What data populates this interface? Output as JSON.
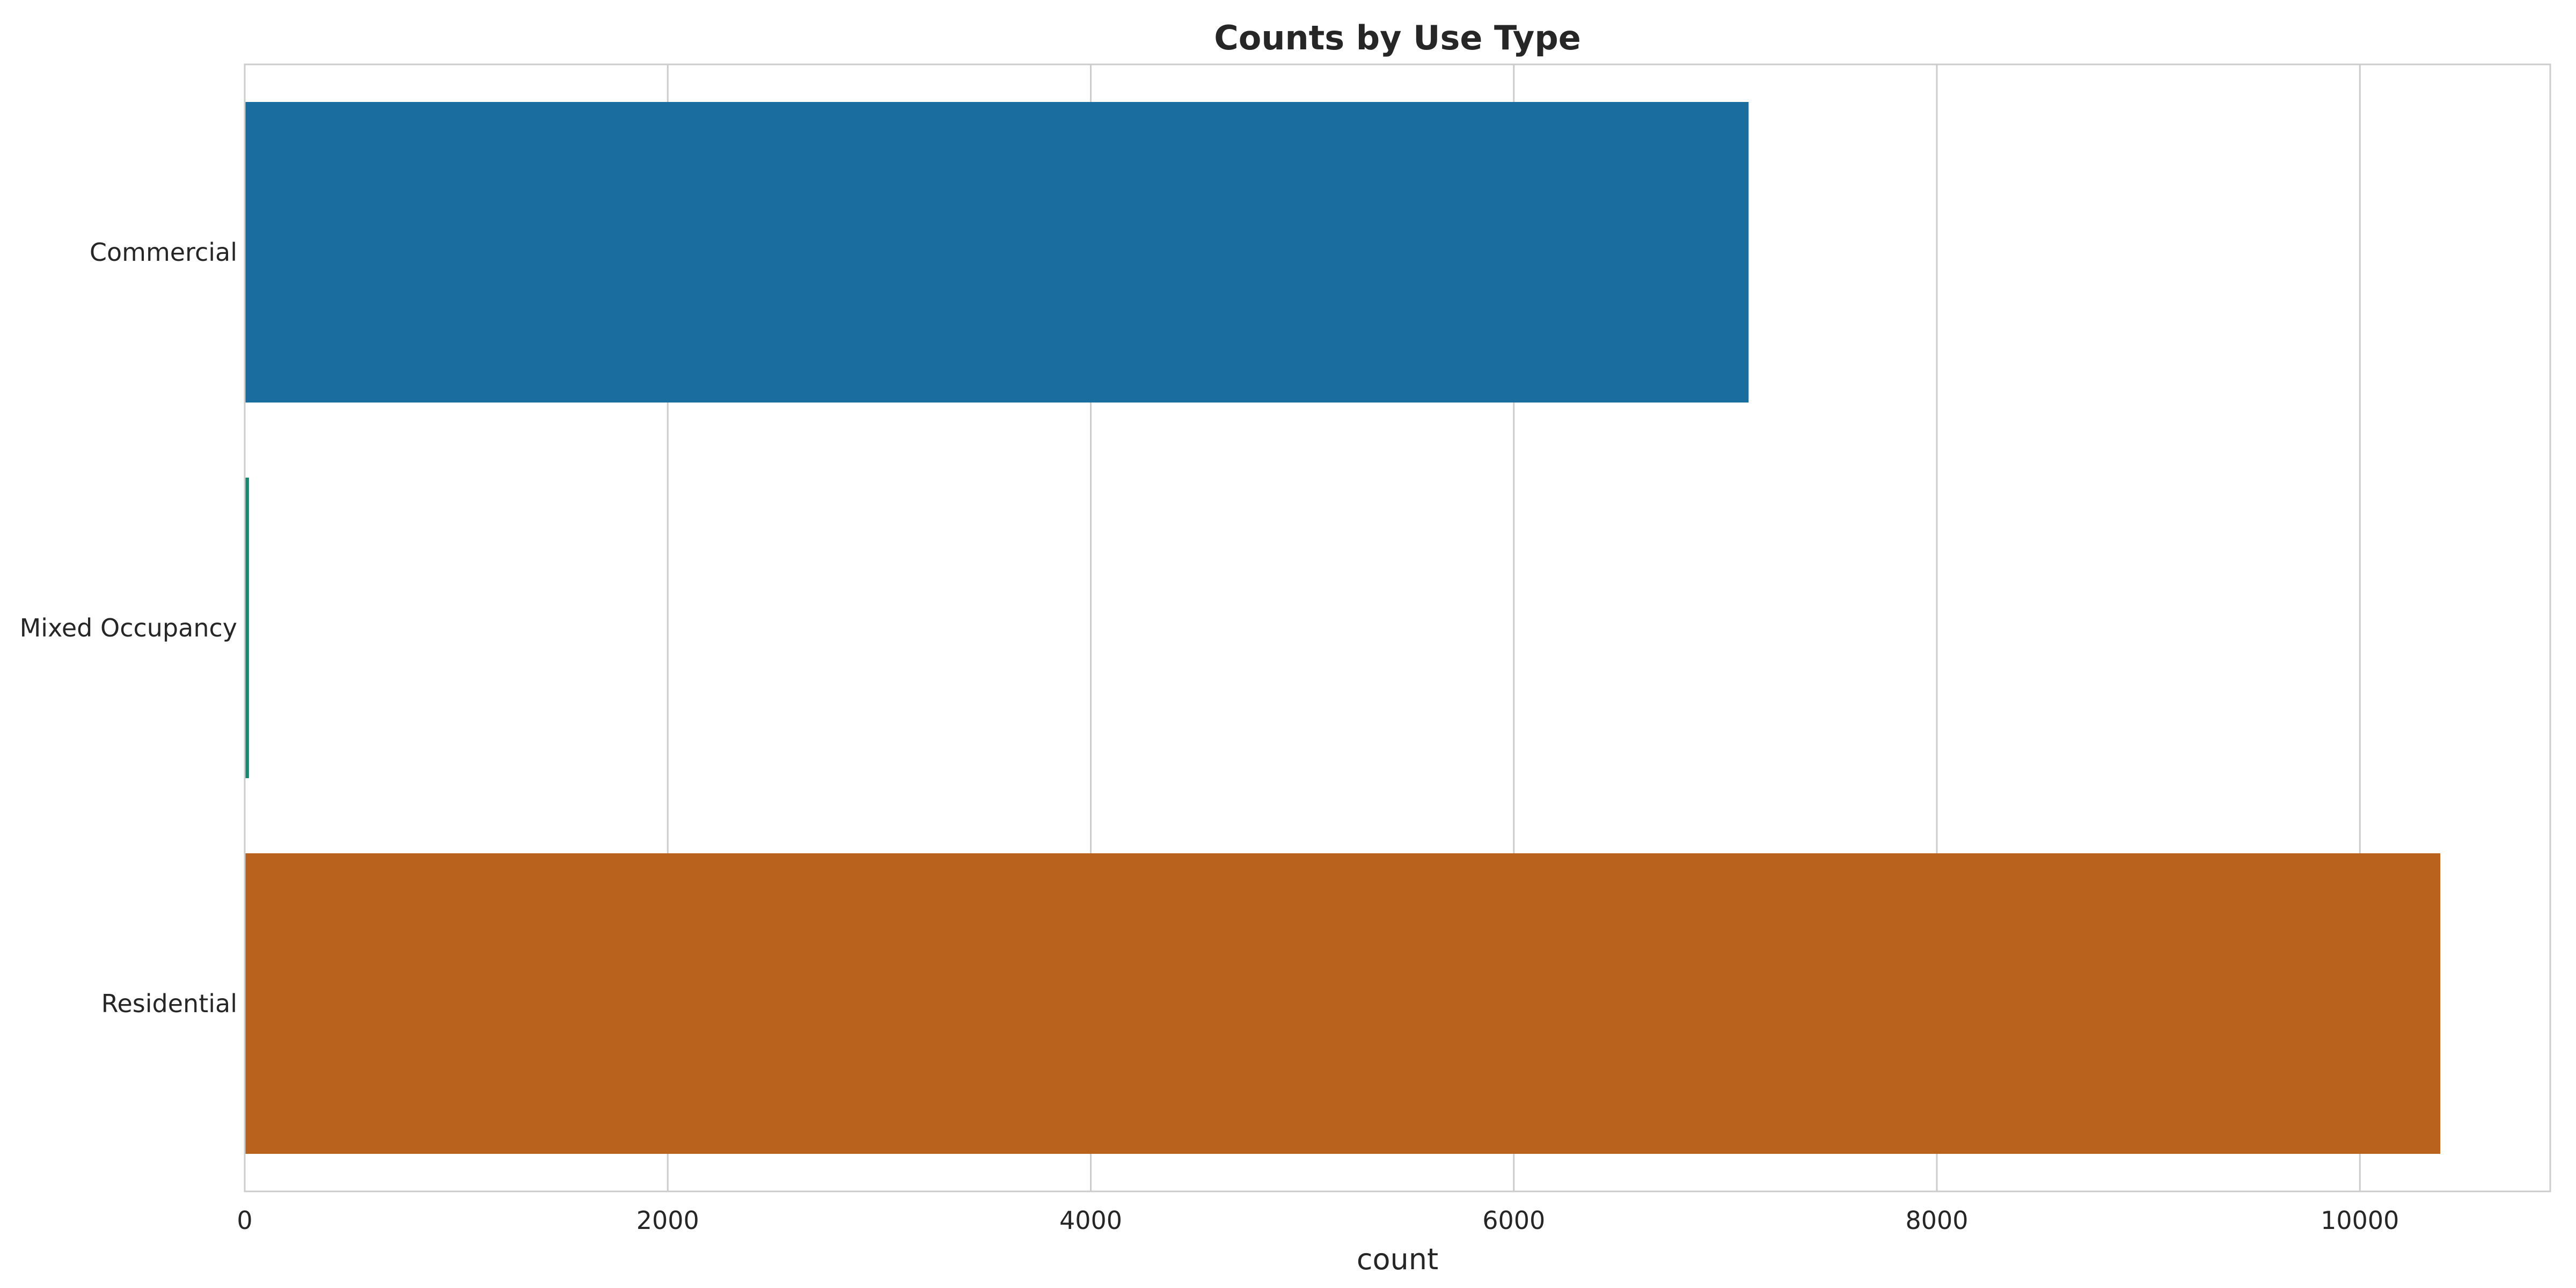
{
  "chart_data": {
    "type": "bar",
    "orientation": "horizontal",
    "title": "Counts by Use Type",
    "xlabel": "count",
    "ylabel": "",
    "categories": [
      "Commercial",
      "Mixed Occupancy",
      "Residential"
    ],
    "values": [
      7110,
      20,
      10380
    ],
    "colors": [
      "#1a6e9f",
      "#128a6e",
      "#b9621e"
    ],
    "xlim": [
      0,
      10900
    ],
    "xticks": [
      0,
      2000,
      4000,
      6000,
      8000,
      10000
    ],
    "grid": "vertical"
  }
}
